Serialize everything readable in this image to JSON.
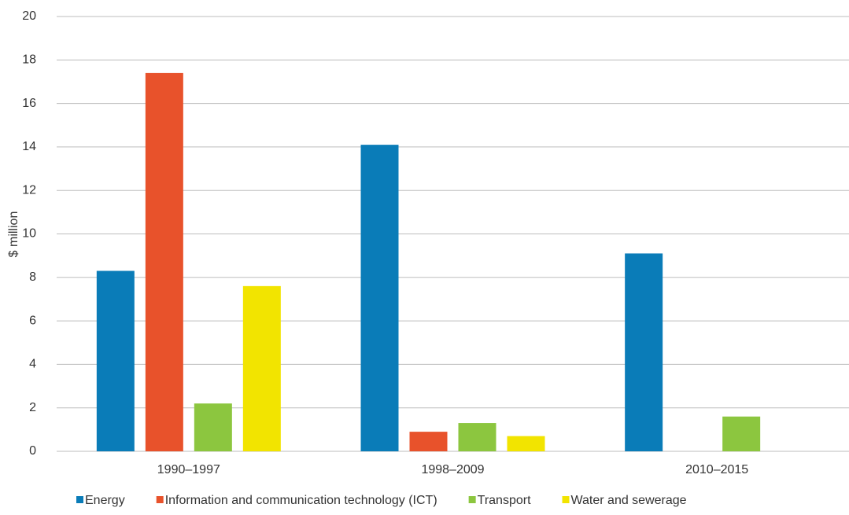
{
  "chart_data": {
    "type": "bar",
    "ylabel": "$ million",
    "categories": [
      "1990–1997",
      "1998–2009",
      "2010–2015"
    ],
    "series": [
      {
        "name": "Energy",
        "color": "#0a7cb8",
        "values": [
          8.3,
          14.1,
          9.1
        ]
      },
      {
        "name": "Information and communication technology (ICT)",
        "color": "#e8522b",
        "values": [
          17.4,
          0.9,
          null
        ]
      },
      {
        "name": "Transport",
        "color": "#8cc63f",
        "values": [
          2.2,
          1.3,
          1.6
        ]
      },
      {
        "name": "Water and sewerage",
        "color": "#f2e400",
        "values": [
          7.6,
          0.7,
          null
        ]
      }
    ],
    "ylim": [
      0,
      20
    ],
    "yticks": [
      0,
      2,
      4,
      6,
      8,
      10,
      12,
      14,
      16,
      18,
      20
    ],
    "grid": true,
    "legend": "bottom"
  }
}
